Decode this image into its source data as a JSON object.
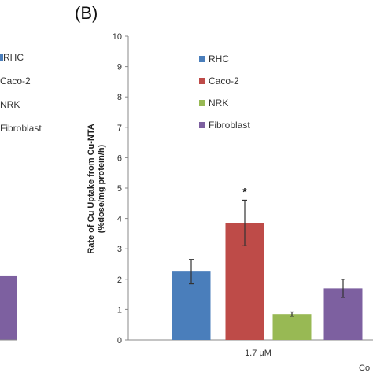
{
  "panel_label": "(B)",
  "left_panel_fragments": {
    "legend_items": [
      "RHC",
      "Caco-2",
      "NRK",
      "Fibroblast"
    ],
    "tick_zero": "0",
    "right_edge_text": "Co"
  },
  "chart_data": {
    "type": "bar",
    "title": "",
    "ylabel_line1": "Rate of Cu Uptake from Cu-NTA",
    "ylabel_line2": "(%dose/mg protein/h)",
    "xlabel": "",
    "ylim": [
      0,
      10
    ],
    "y_ticks": [
      "0",
      "1",
      "2",
      "3",
      "4",
      "5",
      "6",
      "7",
      "8",
      "9",
      "10"
    ],
    "categories": [
      "1.7 μM"
    ],
    "significance_marker": "*",
    "legend_position": "upper-left inside plot",
    "series": [
      {
        "name": "RHC",
        "color": "#4a7ebb",
        "values": [
          2.25
        ],
        "error": [
          0.4
        ]
      },
      {
        "name": "Caco-2",
        "color": "#be4b48",
        "values": [
          3.85
        ],
        "error": [
          0.75
        ]
      },
      {
        "name": "NRK",
        "color": "#98b954",
        "values": [
          0.85
        ],
        "error": [
          0.07
        ]
      },
      {
        "name": "Fibroblast",
        "color": "#7d60a0",
        "values": [
          1.7
        ],
        "error": [
          0.3
        ]
      }
    ],
    "left_panel_visible_bar": {
      "color": "#7d60a0",
      "value": 2.1
    }
  }
}
